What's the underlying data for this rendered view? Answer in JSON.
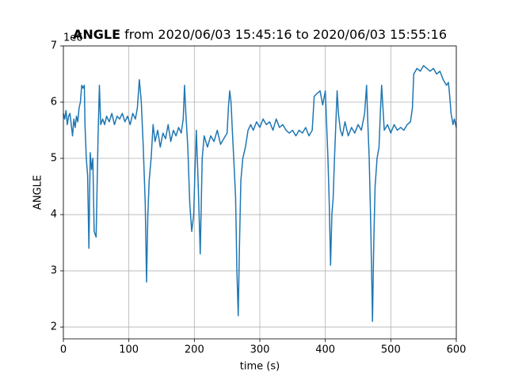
{
  "chart_data": {
    "type": "line",
    "title": [
      "ANGLE",
      "from 2020/06/03 15:45:16 to 2020/06/03 15:55:16"
    ],
    "x_label": "time (s)",
    "y_label": "ANGLE",
    "y_offset_text": "1e6",
    "xlim": [
      0,
      600
    ],
    "ylim": [
      1.79,
      7
    ],
    "xticks": [
      0,
      100,
      200,
      300,
      400,
      500,
      600
    ],
    "yticks": [
      2,
      3,
      4,
      5,
      6,
      7
    ],
    "grid": true,
    "series": [
      {
        "name": "ANGLE",
        "color": "#1f77b4",
        "x": [
          0,
          2,
          4,
          6,
          8,
          10,
          12,
          14,
          16,
          18,
          20,
          22,
          24,
          26,
          28,
          30,
          32,
          33,
          35,
          37,
          39,
          41,
          43,
          45,
          47,
          50,
          53,
          55,
          57,
          60,
          63,
          66,
          70,
          74,
          78,
          82,
          86,
          90,
          94,
          98,
          102,
          106,
          110,
          113,
          116,
          119,
          122,
          125,
          127,
          129,
          131,
          134,
          137,
          140,
          144,
          148,
          152,
          156,
          160,
          164,
          168,
          172,
          176,
          180,
          183,
          185,
          187,
          190,
          193,
          196,
          199,
          201,
          203,
          206,
          209,
          212,
          215,
          220,
          225,
          230,
          235,
          240,
          245,
          250,
          252,
          254,
          256,
          258,
          261,
          263,
          265,
          267,
          269,
          271,
          274,
          278,
          282,
          286,
          290,
          295,
          300,
          305,
          310,
          315,
          320,
          325,
          330,
          335,
          340,
          345,
          350,
          355,
          360,
          365,
          370,
          375,
          380,
          383,
          387,
          392,
          396,
          400,
          402,
          404,
          406,
          408,
          410,
          412,
          414,
          416,
          418,
          420,
          423,
          426,
          430,
          435,
          440,
          445,
          450,
          455,
          460,
          463,
          465,
          467,
          469,
          471,
          472,
          474,
          476,
          479,
          482,
          484,
          486,
          488,
          490,
          495,
          500,
          505,
          510,
          515,
          520,
          525,
          530,
          533,
          535,
          540,
          545,
          550,
          555,
          560,
          565,
          570,
          575,
          580,
          585,
          588,
          590,
          592,
          595,
          597,
          600
        ],
        "values": [
          5.8,
          5.7,
          5.85,
          5.6,
          5.75,
          5.8,
          5.6,
          5.4,
          5.7,
          5.55,
          5.75,
          5.65,
          5.9,
          6.0,
          6.3,
          6.25,
          6.3,
          5.6,
          5.0,
          4.7,
          3.4,
          5.1,
          4.8,
          5.0,
          3.7,
          3.6,
          5.4,
          6.3,
          5.6,
          5.7,
          5.6,
          5.75,
          5.65,
          5.8,
          5.6,
          5.75,
          5.7,
          5.8,
          5.65,
          5.75,
          5.6,
          5.8,
          5.7,
          5.9,
          6.4,
          6.0,
          5.2,
          4.2,
          2.8,
          4.0,
          4.6,
          5.0,
          5.6,
          5.3,
          5.5,
          5.2,
          5.45,
          5.35,
          5.6,
          5.3,
          5.5,
          5.4,
          5.55,
          5.45,
          5.7,
          6.3,
          5.8,
          5.2,
          4.2,
          3.7,
          4.0,
          4.8,
          5.5,
          4.5,
          3.3,
          5.0,
          5.4,
          5.2,
          5.4,
          5.3,
          5.5,
          5.25,
          5.35,
          5.45,
          5.9,
          6.2,
          6.0,
          5.5,
          4.8,
          4.3,
          3.0,
          2.2,
          3.5,
          4.6,
          5.0,
          5.2,
          5.5,
          5.6,
          5.5,
          5.65,
          5.55,
          5.7,
          5.6,
          5.65,
          5.5,
          5.7,
          5.55,
          5.6,
          5.5,
          5.45,
          5.5,
          5.4,
          5.5,
          5.45,
          5.55,
          5.4,
          5.5,
          6.1,
          6.15,
          6.2,
          5.95,
          6.2,
          5.6,
          5.0,
          4.2,
          3.1,
          4.0,
          4.3,
          5.0,
          5.6,
          6.2,
          5.8,
          5.5,
          5.4,
          5.65,
          5.4,
          5.55,
          5.45,
          5.6,
          5.5,
          5.8,
          6.3,
          5.6,
          5.0,
          4.0,
          2.8,
          2.1,
          3.5,
          4.5,
          5.0,
          5.2,
          5.8,
          6.3,
          5.9,
          5.5,
          5.6,
          5.45,
          5.6,
          5.5,
          5.55,
          5.5,
          5.6,
          5.65,
          5.9,
          6.5,
          6.6,
          6.55,
          6.65,
          6.6,
          6.55,
          6.6,
          6.5,
          6.55,
          6.4,
          6.3,
          6.35,
          6.1,
          5.8,
          5.6,
          5.7,
          5.55
        ]
      }
    ]
  }
}
